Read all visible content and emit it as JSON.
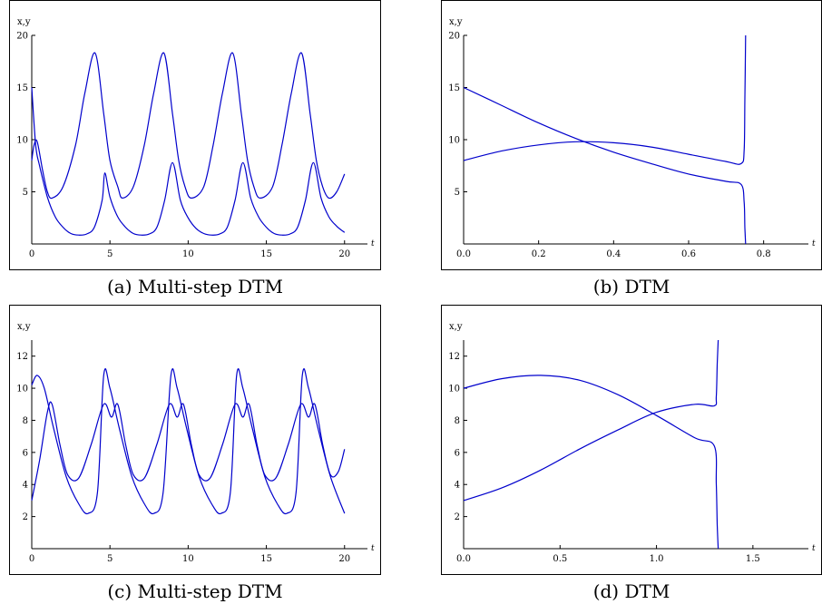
{
  "colors": {
    "series": "#0000cc",
    "axis": "#000000"
  },
  "chart_data": [
    {
      "type": "line",
      "caption": "(a) Multi-step DTM",
      "ylabel": "x,y",
      "xlabel": "t",
      "xlim": [
        0,
        21
      ],
      "ylim": [
        0,
        20
      ],
      "xticks": [
        0,
        5,
        10,
        15,
        20
      ],
      "xtick_labels": [
        "0",
        "5",
        "10",
        "15",
        "20"
      ],
      "yticks": [
        5,
        10,
        15,
        20
      ],
      "ytick_labels": [
        "5",
        "10",
        "15",
        "20"
      ],
      "series": [
        {
          "x": [
            0,
            0.25,
            0.5,
            1.0,
            1.5,
            2.0,
            2.5,
            3.0,
            3.5,
            4.0,
            4.5,
            4.67,
            5.0,
            5.5,
            6.0,
            6.5,
            7.0,
            7.5,
            8.0,
            8.5,
            9.0,
            9.5,
            10.0,
            10.5,
            11.0,
            11.5,
            12.0,
            12.5,
            13.0,
            13.5,
            14.0,
            14.5,
            15.0,
            15.5,
            16.0,
            16.5,
            17.0,
            17.5,
            18.0,
            18.5,
            19.0,
            19.5,
            20.0
          ],
          "y": [
            15.0,
            9.5,
            7.5,
            4.5,
            2.6,
            1.6,
            1.0,
            0.85,
            0.95,
            1.6,
            4.2,
            6.8,
            4.5,
            2.6,
            1.6,
            1.0,
            0.85,
            0.95,
            1.6,
            4.2,
            7.8,
            4.2,
            2.5,
            1.5,
            1.0,
            0.85,
            0.95,
            1.6,
            4.2,
            7.8,
            4.4,
            2.6,
            1.6,
            1.0,
            0.85,
            0.95,
            1.6,
            4.2,
            7.8,
            4.4,
            2.6,
            1.7,
            1.1
          ]
        },
        {
          "x": [
            0,
            0.15,
            0.35,
            0.7,
            1.0,
            1.3,
            2.0,
            2.8,
            3.4,
            4.05,
            4.6,
            5.0,
            5.5,
            5.8,
            6.5,
            7.2,
            7.8,
            8.45,
            9.0,
            9.4,
            9.8,
            10.2,
            11.0,
            11.6,
            12.2,
            12.85,
            13.4,
            13.8,
            14.2,
            14.6,
            15.4,
            16.0,
            16.6,
            17.25,
            17.8,
            18.2,
            18.6,
            19.0,
            19.5,
            20.0
          ],
          "y": [
            8.0,
            9.5,
            9.8,
            7.0,
            5.0,
            4.4,
            5.5,
            9.5,
            14.5,
            18.3,
            12.5,
            8.0,
            5.5,
            4.4,
            5.5,
            9.5,
            14.5,
            18.3,
            12.5,
            8.0,
            5.5,
            4.4,
            5.5,
            9.5,
            14.5,
            18.3,
            12.5,
            8.0,
            5.5,
            4.4,
            5.5,
            9.5,
            14.5,
            18.3,
            12.5,
            8.0,
            5.5,
            4.4,
            5.0,
            6.7
          ]
        }
      ]
    },
    {
      "type": "line",
      "caption": "(b) DTM",
      "ylabel": "x,y",
      "xlabel": "t",
      "xlim": [
        0,
        0.9
      ],
      "ylim": [
        0,
        20
      ],
      "xticks": [
        0,
        0.2,
        0.4,
        0.6,
        0.8
      ],
      "xtick_labels": [
        "0.0",
        "0.2",
        "0.4",
        "0.6",
        "0.8"
      ],
      "yticks": [
        5,
        10,
        15,
        20
      ],
      "ytick_labels": [
        "5",
        "10",
        "15",
        "20"
      ],
      "series": [
        {
          "x": [
            0,
            0.1,
            0.2,
            0.3,
            0.4,
            0.5,
            0.6,
            0.7,
            0.74,
            0.748,
            0.75,
            0.752
          ],
          "y": [
            15.0,
            13.3,
            11.6,
            10.1,
            8.8,
            7.7,
            6.7,
            6.0,
            5.7,
            4.0,
            1.5,
            0
          ]
        },
        {
          "x": [
            0,
            0.1,
            0.2,
            0.3,
            0.4,
            0.5,
            0.6,
            0.7,
            0.74,
            0.748,
            0.75,
            0.752
          ],
          "y": [
            8.0,
            8.9,
            9.5,
            9.8,
            9.7,
            9.3,
            8.6,
            7.9,
            7.7,
            9.0,
            14.0,
            20.0
          ]
        }
      ]
    },
    {
      "type": "line",
      "caption": "(c) Multi-step DTM",
      "ylabel": "x,y",
      "xlabel": "t",
      "xlim": [
        0,
        21
      ],
      "ylim": [
        0,
        13
      ],
      "xticks": [
        0,
        5,
        10,
        15,
        20
      ],
      "xtick_labels": [
        "0",
        "5",
        "10",
        "15",
        "20"
      ],
      "yticks": [
        2,
        4,
        6,
        8,
        10,
        12
      ],
      "ytick_labels": [
        "2",
        "4",
        "6",
        "8",
        "10",
        "12"
      ],
      "series": [
        {
          "x": [
            0,
            0.35,
            0.8,
            1.4,
            2.2,
            3.0,
            3.6,
            4.2,
            4.6,
            5.0,
            5.6,
            6.4,
            7.2,
            7.8,
            8.4,
            8.9,
            9.3,
            9.9,
            10.7,
            11.5,
            12.1,
            12.7,
            13.1,
            13.5,
            14.1,
            14.9,
            15.7,
            16.3,
            16.9,
            17.3,
            17.7,
            18.3,
            19.1,
            20.0
          ],
          "y": [
            10.2,
            10.8,
            10.0,
            7.5,
            4.5,
            2.8,
            2.2,
            3.5,
            10.8,
            10.0,
            7.5,
            4.5,
            2.8,
            2.2,
            3.5,
            10.8,
            10.0,
            7.5,
            4.5,
            2.8,
            2.2,
            3.5,
            10.8,
            10.0,
            7.5,
            4.5,
            2.8,
            2.2,
            3.5,
            10.8,
            10.0,
            7.5,
            4.5,
            2.2
          ]
        },
        {
          "x": [
            0,
            0.5,
            1.0,
            1.3,
            1.8,
            2.3,
            3.0,
            3.8,
            4.6,
            5.1,
            5.5,
            6.0,
            6.5,
            7.2,
            8.0,
            8.8,
            9.3,
            9.7,
            10.2,
            10.7,
            11.4,
            12.2,
            13.0,
            13.5,
            13.9,
            14.4,
            14.9,
            15.6,
            16.4,
            17.2,
            17.7,
            18.1,
            18.6,
            19.1,
            19.6,
            20.0
          ],
          "y": [
            3.0,
            5.5,
            8.5,
            9.0,
            6.5,
            4.6,
            4.4,
            6.5,
            9.0,
            8.2,
            9.0,
            6.5,
            4.6,
            4.4,
            6.5,
            9.0,
            8.2,
            9.0,
            6.5,
            4.6,
            4.4,
            6.5,
            9.0,
            8.2,
            9.0,
            6.5,
            4.6,
            4.4,
            6.5,
            9.0,
            8.2,
            9.0,
            6.5,
            4.6,
            4.8,
            6.2
          ]
        }
      ]
    },
    {
      "type": "line",
      "caption": "(d) DTM",
      "ylabel": "x,y",
      "xlabel": "t",
      "xlim": [
        0,
        1.75
      ],
      "ylim": [
        0,
        13
      ],
      "xticks": [
        0,
        0.5,
        1.0,
        1.5
      ],
      "xtick_labels": [
        "0.0",
        "0.5",
        "1.0",
        "1.5"
      ],
      "yticks": [
        2,
        4,
        6,
        8,
        10,
        12
      ],
      "ytick_labels": [
        "2",
        "4",
        "6",
        "8",
        "10",
        "12"
      ],
      "series": [
        {
          "x": [
            0,
            0.2,
            0.4,
            0.6,
            0.8,
            1.0,
            1.2,
            1.3,
            1.31,
            1.315,
            1.32
          ],
          "y": [
            10.0,
            10.6,
            10.8,
            10.5,
            9.6,
            8.3,
            6.9,
            6.4,
            4.0,
            1.5,
            0
          ]
        },
        {
          "x": [
            0,
            0.2,
            0.4,
            0.6,
            0.8,
            1.0,
            1.2,
            1.3,
            1.31,
            1.315,
            1.32
          ],
          "y": [
            3.0,
            3.8,
            4.9,
            6.2,
            7.4,
            8.5,
            9.0,
            8.9,
            9.5,
            11.5,
            13.0
          ]
        }
      ]
    }
  ]
}
